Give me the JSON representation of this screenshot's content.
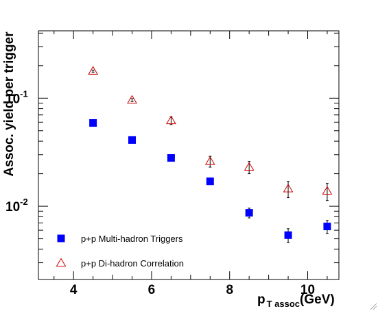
{
  "chart_data": {
    "type": "scatter",
    "title": "",
    "xlabel_main": "p",
    "xlabel_sub": "T assoc",
    "xlabel_unit": "(GeV)",
    "ylabel": "Assoc. yield per trigger",
    "xlim": [
      3.1,
      10.8
    ],
    "ylim": [
      0.0021,
      0.42
    ],
    "yscale": "log",
    "x_ticks": [
      4,
      6,
      8,
      10
    ],
    "x_tick_labels": [
      "4",
      "6",
      "8",
      "10"
    ],
    "y_tick_labels": [
      {
        "value": 0.1,
        "base": "10",
        "exp": "-1"
      },
      {
        "value": 0.01,
        "base": "10",
        "exp": "-2"
      }
    ],
    "grid": false,
    "legend_position": "bottom-left",
    "series": [
      {
        "name": "p+p Multi-hadron Triggers",
        "marker": "filled-square",
        "color": "#0000ff",
        "x": [
          4.5,
          5.5,
          6.5,
          7.5,
          8.5,
          9.5,
          10.5
        ],
        "y": [
          0.059,
          0.041,
          0.028,
          0.017,
          0.0087,
          0.0054,
          0.0065
        ],
        "err": [
          0.0015,
          0.0012,
          0.0009,
          0.0009,
          0.0009,
          0.0008,
          0.0009
        ]
      },
      {
        "name": "p+p Di-hadron Correlation",
        "marker": "open-triangle",
        "color": "#cc0000",
        "x": [
          4.5,
          5.5,
          6.5,
          7.5,
          8.5,
          9.5,
          10.5
        ],
        "y": [
          0.178,
          0.096,
          0.062,
          0.026,
          0.023,
          0.0145,
          0.0138
        ],
        "err": [
          0.004,
          0.003,
          0.005,
          0.003,
          0.003,
          0.0025,
          0.0025
        ]
      }
    ]
  }
}
